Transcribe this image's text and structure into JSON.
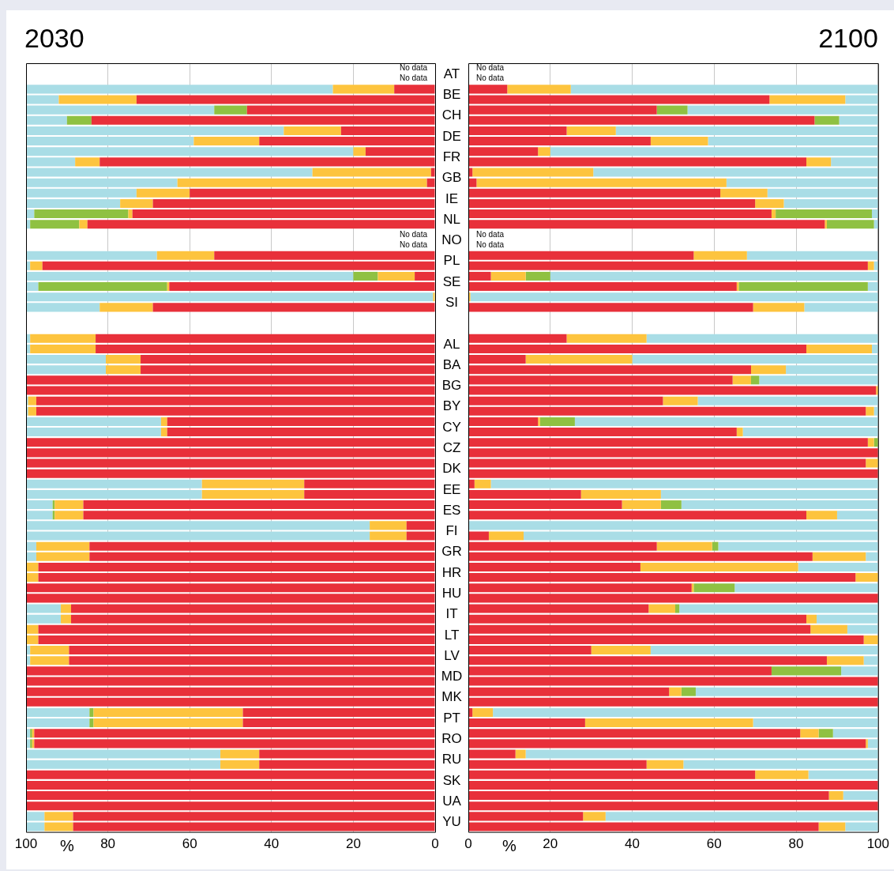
{
  "chart_data": [
    {
      "type": "bar",
      "orientation": "horizontal",
      "stacked": true,
      "title": "2030",
      "xlabel": "%",
      "grid": "x",
      "categories": [
        "AT",
        null,
        "BE",
        null,
        "CH",
        null,
        "DE",
        null,
        "FR",
        null,
        "GB",
        null,
        "IE",
        null,
        "NL",
        null,
        "NO",
        null,
        "PL",
        null,
        "SE",
        null,
        "SI",
        null,
        null,
        null,
        "AL",
        null,
        "BA",
        null,
        "BG",
        null,
        "BY",
        null,
        "CY",
        null,
        "CZ",
        null,
        "DK",
        null,
        "EE",
        null,
        "ES",
        null,
        "FI",
        null,
        "GR",
        null,
        "HR",
        null,
        "HU",
        null,
        "IT",
        null,
        "LT",
        null,
        "LV",
        null,
        "MD",
        null,
        "MK",
        null,
        "PT",
        null,
        "RO",
        null,
        "RU",
        null,
        "SK",
        null,
        "UA",
        null,
        "YU",
        null
      ],
      "series": [
        {
          "color": "#e8303a",
          "values": [
            null,
            null,
            10,
            73,
            46,
            84,
            23,
            43,
            17,
            82,
            1,
            2,
            60,
            69,
            74,
            85,
            null,
            null,
            54,
            96,
            5,
            65,
            0,
            69,
            null,
            null,
            83,
            83,
            72,
            72,
            100,
            100,
            97.5,
            97.5,
            65.5,
            65.5,
            100,
            100,
            100,
            100,
            32,
            32,
            86,
            86,
            7,
            7,
            84.5,
            84.5,
            97,
            97,
            100,
            100,
            89,
            89,
            97,
            97,
            89.5,
            89.5,
            100,
            100,
            100,
            100,
            47,
            47,
            98,
            98,
            43,
            43,
            100,
            100,
            100,
            100,
            88.5,
            88.5
          ]
        },
        {
          "color": "#fdc43e",
          "values": [
            null,
            null,
            15,
            19,
            0,
            0,
            14,
            16,
            3,
            6,
            29,
            61,
            13,
            8,
            1,
            2,
            null,
            null,
            14,
            3,
            9,
            0.5,
            0.5,
            13,
            null,
            null,
            16,
            16,
            8.5,
            8.5,
            0,
            0,
            2,
            2,
            1.5,
            1.5,
            0,
            0,
            0,
            0,
            25,
            25,
            7,
            7,
            9,
            9,
            13,
            13,
            3,
            3,
            0,
            0,
            2.5,
            2.5,
            3,
            3,
            9.5,
            9.5,
            0,
            0,
            0,
            0,
            36.5,
            36.5,
            0.5,
            0.5,
            9.5,
            9.5,
            0,
            0,
            0,
            0,
            7,
            7
          ]
        },
        {
          "color": "#8fc142",
          "values": [
            null,
            null,
            0,
            0,
            8,
            6,
            0,
            0,
            0,
            0,
            0,
            0,
            0,
            0,
            23,
            12,
            null,
            null,
            0,
            0,
            6,
            31.5,
            0,
            0,
            null,
            null,
            0,
            0,
            0,
            0,
            0,
            0,
            0,
            0,
            0,
            0,
            0,
            0,
            0,
            0,
            0,
            0,
            0.5,
            0.5,
            0,
            0,
            0,
            0,
            0,
            0,
            0,
            0,
            0,
            0,
            0,
            0,
            0,
            0,
            0,
            0,
            0,
            0,
            1,
            1,
            0.5,
            0.5,
            0,
            0,
            0,
            0,
            0,
            0,
            0,
            0
          ]
        },
        {
          "color": "#a9dde6",
          "values": [
            null,
            null,
            75,
            8,
            46,
            10,
            63,
            41,
            80,
            12,
            70,
            37,
            27,
            23,
            2,
            1,
            null,
            null,
            32,
            1,
            80,
            3,
            99.5,
            18,
            null,
            null,
            1,
            1,
            19.5,
            19.5,
            0,
            0,
            0.5,
            0.5,
            33,
            33,
            0,
            0,
            0,
            0,
            43,
            43,
            6.5,
            6.5,
            84,
            84,
            2.5,
            2.5,
            0,
            0,
            0,
            0,
            8.5,
            8.5,
            0,
            0,
            1,
            1,
            0,
            0,
            0,
            0,
            15.5,
            15.5,
            1,
            1,
            47.5,
            47.5,
            0,
            0,
            0,
            0,
            4.5,
            4.5
          ]
        }
      ],
      "xlim": [
        100,
        0
      ],
      "xticks": [
        100,
        80,
        60,
        40,
        20,
        0
      ],
      "annotations": [
        "No data",
        "No data",
        "No data",
        "No data"
      ]
    },
    {
      "type": "bar",
      "orientation": "horizontal",
      "stacked": true,
      "title": "2100",
      "xlabel": "%",
      "grid": "x",
      "tick_labels": "x",
      "categories": [
        "AT",
        null,
        "BE",
        null,
        "CH",
        null,
        "DE",
        null,
        "FR",
        null,
        "GB",
        null,
        "IE",
        null,
        "NL",
        null,
        "NO",
        null,
        "PL",
        null,
        "SE",
        null,
        "SI",
        null,
        null,
        null,
        "AL",
        null,
        "BA",
        null,
        "BG",
        null,
        "BY",
        null,
        "CY",
        null,
        "CZ",
        null,
        "DK",
        null,
        "EE",
        null,
        "ES",
        null,
        "FI",
        null,
        "GR",
        null,
        "HR",
        null,
        "HU",
        null,
        "IT",
        null,
        "LT",
        null,
        "LV",
        null,
        "MD",
        null,
        "MK",
        null,
        "PT",
        null,
        "RO",
        null,
        "RU",
        null,
        "SK",
        null,
        "UA",
        null,
        "YU",
        null
      ],
      "series": [
        {
          "color": "#e8303a",
          "values": [
            null,
            null,
            9.5,
            73.5,
            46,
            84.5,
            24,
            44.5,
            17,
            82.5,
            1,
            2,
            61.5,
            70,
            74,
            87,
            null,
            null,
            55,
            97.5,
            5.5,
            65.5,
            0,
            69.5,
            null,
            null,
            24,
            82.5,
            14,
            69,
            64.5,
            99.5,
            47.5,
            97,
            17,
            65.5,
            97.5,
            100,
            97,
            100,
            1.5,
            27.5,
            37.5,
            82.5,
            0,
            5,
            46,
            84,
            42,
            94.5,
            54.5,
            100,
            44,
            82.5,
            83.5,
            96.5,
            30,
            87.5,
            74,
            100,
            49,
            100,
            1,
            28.5,
            81,
            97,
            11.5,
            43.5,
            70,
            100,
            88,
            100,
            28,
            85.5
          ]
        },
        {
          "color": "#fdc43e",
          "values": [
            null,
            null,
            15.5,
            18.5,
            0,
            0,
            12,
            14,
            3,
            6,
            29.5,
            61,
            11.5,
            7,
            1,
            0.5,
            null,
            null,
            13,
            1.5,
            8.5,
            0.5,
            0.5,
            12.5,
            null,
            null,
            19.5,
            16,
            26,
            8.5,
            4.5,
            0.5,
            8.5,
            2,
            0.5,
            1.5,
            1.5,
            0,
            3,
            0,
            4,
            19.5,
            9.5,
            7.5,
            0,
            8.5,
            13.5,
            13,
            38.5,
            5.5,
            0.5,
            0,
            6.5,
            2.5,
            9,
            3.5,
            14.5,
            9,
            0,
            0,
            3,
            0,
            5,
            41,
            4.5,
            0.5,
            2.5,
            9,
            13,
            0,
            3.5,
            0,
            5.5,
            6.5
          ]
        },
        {
          "color": "#8fc142",
          "values": [
            null,
            null,
            0,
            0,
            7.5,
            6,
            0,
            0,
            0,
            0,
            0,
            0,
            0,
            0,
            23.5,
            11.5,
            null,
            null,
            0,
            0,
            6,
            31.5,
            0,
            0,
            null,
            null,
            0,
            0,
            0,
            0,
            2,
            0,
            0,
            0,
            8.5,
            0,
            1,
            0,
            0,
            0,
            0,
            0,
            5,
            0,
            0,
            0,
            1.5,
            0,
            0,
            0,
            10,
            0,
            1,
            0,
            0,
            0,
            0,
            0,
            17,
            0,
            3.5,
            0,
            0,
            0,
            3.5,
            0,
            0,
            0,
            0,
            0,
            0,
            0,
            0,
            0
          ]
        },
        {
          "color": "#a9dde6",
          "values": [
            null,
            null,
            75,
            8,
            46.5,
            9.5,
            64,
            41.5,
            80,
            11.5,
            69.5,
            37,
            27,
            23,
            1.5,
            1,
            null,
            null,
            32,
            1,
            80,
            2.5,
            99.5,
            18,
            null,
            null,
            56.5,
            1.5,
            60,
            22.5,
            29,
            0,
            44,
            1,
            74,
            33,
            0,
            0,
            0,
            0,
            94.5,
            53,
            48,
            10,
            100,
            86.5,
            39,
            3,
            19.5,
            0,
            35,
            0,
            48.5,
            15,
            7.5,
            0,
            55.5,
            3.5,
            9,
            0,
            44.5,
            0,
            94,
            30.5,
            11,
            2.5,
            86,
            47.5,
            17,
            0,
            8.5,
            0,
            66.5,
            8
          ]
        }
      ],
      "xlim": [
        0,
        100
      ],
      "xticks": [
        0,
        20,
        40,
        60,
        80,
        100
      ],
      "annotations": [
        "No data",
        "No data",
        "No data",
        "No data"
      ]
    }
  ]
}
